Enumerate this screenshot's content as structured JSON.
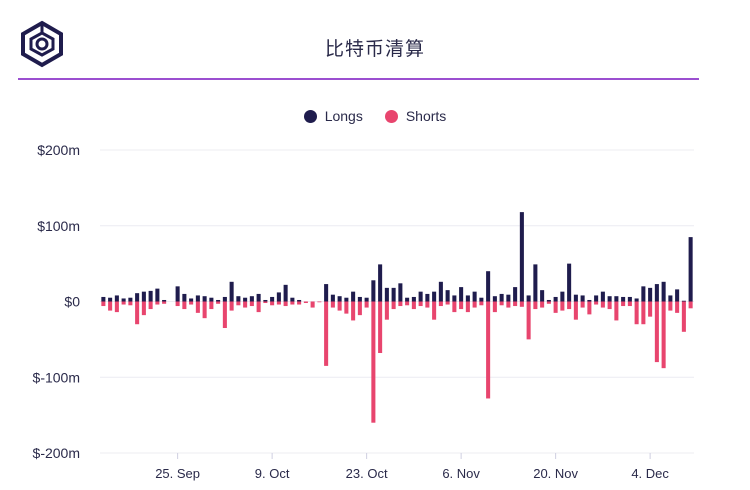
{
  "header": {
    "title": "比特币清算",
    "logo_icon": "cube-logo-icon",
    "accent_color": "#9b4fd0"
  },
  "legend": [
    {
      "label": "Longs",
      "color": "#1f1c4d"
    },
    {
      "label": "Shorts",
      "color": "#e8456e"
    }
  ],
  "chart_data": {
    "type": "bar",
    "title": "比特币清算",
    "xlabel": "",
    "ylabel": "",
    "ylim": [
      -200,
      200
    ],
    "y_ticks": [
      {
        "value": 200,
        "label": "$200m"
      },
      {
        "value": 100,
        "label": "$100m"
      },
      {
        "value": 0,
        "label": "$0"
      },
      {
        "value": -100,
        "label": "$-100m"
      },
      {
        "value": -200,
        "label": "$-200m"
      }
    ],
    "x_ticks": [
      {
        "index": 11,
        "label": "25. Sep"
      },
      {
        "index": 25,
        "label": "9. Oct"
      },
      {
        "index": 39,
        "label": "23. Oct"
      },
      {
        "index": 53,
        "label": "6. Nov"
      },
      {
        "index": 67,
        "label": "20. Nov"
      },
      {
        "index": 81,
        "label": "4. Dec"
      }
    ],
    "grid": true,
    "legend_position": "top-center",
    "stacked_diverging": true,
    "series": [
      {
        "name": "Longs",
        "color": "#1f1c4d",
        "values": [
          6,
          5,
          8,
          4,
          5,
          11,
          13,
          14,
          17,
          2,
          0,
          20,
          10,
          4,
          8,
          7,
          5,
          2,
          6,
          26,
          7,
          5,
          7,
          10,
          2,
          6,
          12,
          22,
          5,
          2,
          0,
          0,
          0,
          23,
          9,
          7,
          5,
          13,
          6,
          5,
          28,
          49,
          18,
          18,
          24,
          5,
          6,
          13,
          10,
          13,
          26,
          15,
          8,
          19,
          8,
          13,
          5,
          40,
          7,
          10,
          9,
          19,
          118,
          8,
          49,
          15,
          2,
          6,
          13,
          50,
          9,
          8,
          2,
          8,
          13,
          7,
          7,
          6,
          6,
          4,
          20,
          18,
          23,
          26,
          8,
          16,
          1,
          85
        ]
      },
      {
        "name": "Shorts",
        "color": "#e8456e",
        "values": [
          -6,
          -12,
          -14,
          -4,
          -5,
          -30,
          -18,
          -10,
          -4,
          -3,
          0,
          -6,
          -10,
          -4,
          -15,
          -22,
          -10,
          -3,
          -35,
          -12,
          -5,
          -8,
          -6,
          -14,
          -2,
          -5,
          -4,
          -6,
          -4,
          -4,
          -2,
          -8,
          -1,
          -85,
          -8,
          -12,
          -16,
          -25,
          -18,
          -8,
          -160,
          -68,
          -24,
          -10,
          -6,
          -5,
          -10,
          -6,
          -8,
          -24,
          -6,
          -4,
          -14,
          -10,
          -14,
          -8,
          -5,
          -128,
          -14,
          -5,
          -8,
          -6,
          -7,
          -50,
          -10,
          -8,
          -3,
          -15,
          -12,
          -10,
          -24,
          -8,
          -17,
          -4,
          -8,
          -10,
          -25,
          -6,
          -6,
          -30,
          -30,
          -20,
          -80,
          -88,
          -12,
          -15,
          -40,
          -9
        ]
      }
    ]
  }
}
